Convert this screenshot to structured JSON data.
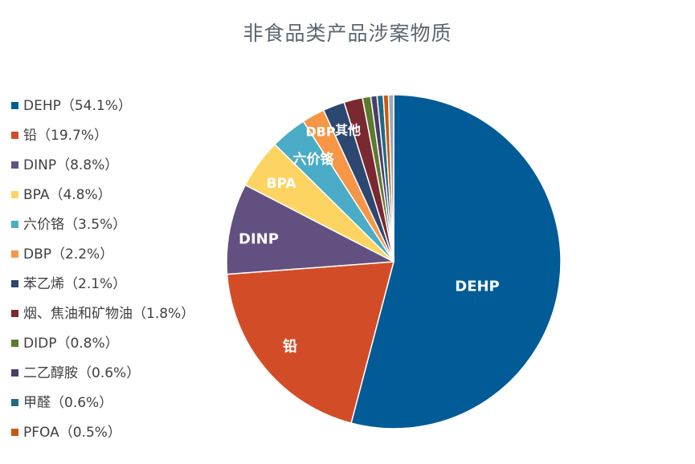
{
  "chart_data": {
    "type": "pie",
    "title": "非食品类产品涉案物质",
    "legend_position": "left",
    "slices": [
      {
        "name": "DEHP",
        "value": 54.1,
        "legend": "DEHP（54.1%）",
        "label": "DEHP",
        "color": "#005b96"
      },
      {
        "name": "铅",
        "value": 19.7,
        "legend": "铅（19.7%）",
        "label": "铅",
        "color": "#d24d27"
      },
      {
        "name": "DINP",
        "value": 8.8,
        "legend": "DINP（8.8%）",
        "label": "DINP",
        "color": "#625180"
      },
      {
        "name": "BPA",
        "value": 4.8,
        "legend": "BPA（4.8%）",
        "label": "BPA",
        "color": "#fdd462"
      },
      {
        "name": "六价铬",
        "value": 3.5,
        "legend": "六价铬（3.5%）",
        "label": "六价铬",
        "color": "#4aacc6"
      },
      {
        "name": "DBP",
        "value": 2.2,
        "legend": "DBP（2.2%）",
        "label": "DBP",
        "color": "#f79646"
      },
      {
        "name": "苯乙烯",
        "value": 2.1,
        "legend": "苯乙烯（2.1%）",
        "label": "",
        "color": "#2c4770"
      },
      {
        "name": "烟、焦油和矿物油",
        "value": 1.8,
        "legend": "烟、焦油和矿物油（1.8%）",
        "label": "",
        "color": "#7b2930"
      },
      {
        "name": "DIDP",
        "value": 0.8,
        "legend": "DIDP（0.8%）",
        "label": "",
        "color": "#5c7a2e"
      },
      {
        "name": "二乙醇胺",
        "value": 0.6,
        "legend": "二乙醇胺（0.6%）",
        "label": "",
        "color": "#4b3d69"
      },
      {
        "name": "甲醛",
        "value": 0.6,
        "legend": "甲醛（0.6%）",
        "label": "",
        "color": "#216a82"
      },
      {
        "name": "PFOA",
        "value": 0.5,
        "legend": "PFOA（0.5%）",
        "label": "",
        "color": "#c65a12"
      },
      {
        "name": "其他",
        "value": 0.5,
        "legend": "",
        "label": "其他",
        "color": "#9fa8b3"
      }
    ]
  }
}
